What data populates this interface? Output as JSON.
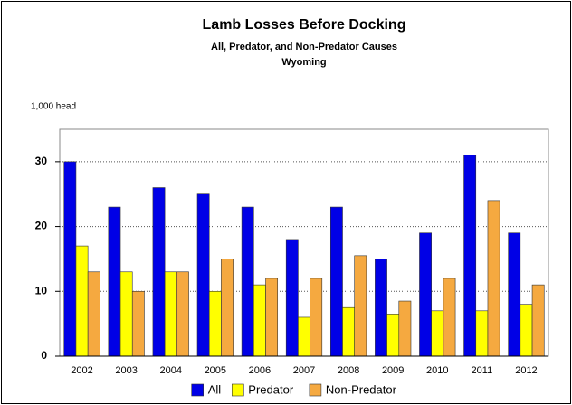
{
  "chart_data": {
    "type": "bar",
    "title": "Lamb Losses Before Docking",
    "subtitle": [
      "All, Predator, and Non-Predator Causes",
      "Wyoming"
    ],
    "ylabel": "1,000 head",
    "categories": [
      "2002",
      "2003",
      "2004",
      "2005",
      "2006",
      "2007",
      "2008",
      "2009",
      "2010",
      "2011",
      "2012"
    ],
    "series": [
      {
        "name": "All",
        "color": "#0000e6",
        "values": [
          30,
          23,
          26,
          25,
          23,
          18,
          23,
          15,
          19,
          31,
          19
        ]
      },
      {
        "name": "Predator",
        "color": "#ffff00",
        "values": [
          17,
          13,
          13,
          10,
          11,
          6,
          7.5,
          6.5,
          7,
          7,
          8
        ]
      },
      {
        "name": "Non-Predator",
        "color": "#f5a940",
        "values": [
          13,
          10,
          13,
          15,
          12,
          12,
          15.5,
          8.5,
          12,
          24,
          11
        ]
      }
    ],
    "ylim": [
      0,
      35
    ],
    "yticks": [
      0,
      10,
      20,
      30
    ],
    "grid": true
  }
}
